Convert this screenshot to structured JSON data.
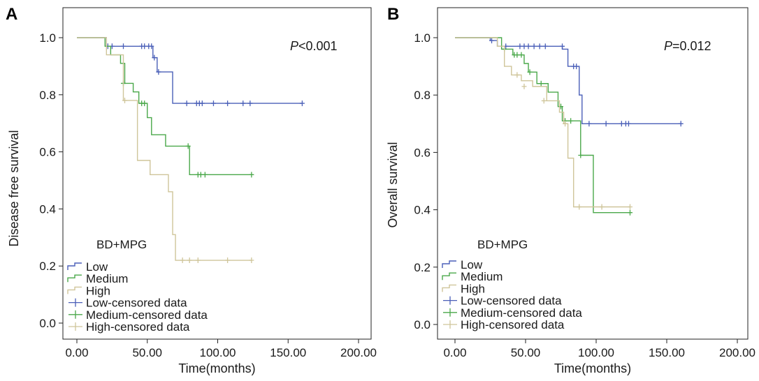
{
  "chart_data": [
    {
      "type": "line",
      "subtype": "kaplan-meier",
      "panel": "A",
      "ylabel": "Disease free survival",
      "xlabel": "Time(months)",
      "xlim": [
        0,
        200
      ],
      "ylim": [
        0,
        1.0
      ],
      "xticks": [
        "0.00",
        "50.00",
        "100.00",
        "150.00",
        "200.00"
      ],
      "yticks": [
        "0.0",
        "0.2",
        "0.4",
        "0.6",
        "0.8",
        "1.0"
      ],
      "pvalue": {
        "p": "P",
        "rest": "<0.001"
      },
      "legend_title": "BD+MPG",
      "legend": [
        "Low",
        "Medium",
        "High",
        "Low-censored data",
        "Medium-censored data",
        "High-censored data"
      ],
      "series": [
        {
          "name": "Low",
          "color": "#4a5fb8",
          "steps": [
            [
              0,
              1.0
            ],
            [
              21,
              0.97
            ],
            [
              54,
              0.93
            ],
            [
              57,
              0.88
            ],
            [
              68,
              0.77
            ],
            [
              160,
              0.77
            ]
          ],
          "censored": [
            [
              22,
              0.97
            ],
            [
              25,
              0.97
            ],
            [
              33,
              0.97
            ],
            [
              46,
              0.97
            ],
            [
              48,
              0.97
            ],
            [
              51,
              0.97
            ],
            [
              53,
              0.97
            ],
            [
              55,
              0.93
            ],
            [
              58,
              0.88
            ],
            [
              78,
              0.77
            ],
            [
              85,
              0.77
            ],
            [
              87,
              0.77
            ],
            [
              89,
              0.77
            ],
            [
              97,
              0.77
            ],
            [
              107,
              0.77
            ],
            [
              118,
              0.77
            ],
            [
              123,
              0.77
            ],
            [
              160,
              0.77
            ]
          ]
        },
        {
          "name": "Medium",
          "color": "#4aa84a",
          "steps": [
            [
              0,
              1.0
            ],
            [
              20,
              0.97
            ],
            [
              24,
              0.94
            ],
            [
              31,
              0.91
            ],
            [
              34,
              0.84
            ],
            [
              40,
              0.81
            ],
            [
              44,
              0.77
            ],
            [
              50,
              0.72
            ],
            [
              53,
              0.66
            ],
            [
              63,
              0.62
            ],
            [
              80,
              0.52
            ],
            [
              124,
              0.52
            ]
          ],
          "censored": [
            [
              33,
              0.84
            ],
            [
              46,
              0.77
            ],
            [
              48,
              0.77
            ],
            [
              79,
              0.62
            ],
            [
              86,
              0.52
            ],
            [
              88,
              0.52
            ],
            [
              91,
              0.52
            ],
            [
              124,
              0.52
            ]
          ]
        },
        {
          "name": "High",
          "color": "#cfc59a",
          "steps": [
            [
              0,
              1.0
            ],
            [
              21,
              0.94
            ],
            [
              33,
              0.78
            ],
            [
              43,
              0.57
            ],
            [
              52,
              0.52
            ],
            [
              65,
              0.46
            ],
            [
              68,
              0.31
            ],
            [
              70,
              0.22
            ],
            [
              124,
              0.22
            ]
          ],
          "censored": [
            [
              34,
              0.78
            ],
            [
              75,
              0.22
            ],
            [
              80,
              0.22
            ],
            [
              86,
              0.22
            ],
            [
              107,
              0.22
            ],
            [
              124,
              0.22
            ]
          ]
        }
      ]
    },
    {
      "type": "line",
      "subtype": "kaplan-meier",
      "panel": "B",
      "ylabel": "Overall survival",
      "xlabel": "Time(months)",
      "xlim": [
        0,
        200
      ],
      "ylim": [
        0,
        1.0
      ],
      "xticks": [
        "0.00",
        "50.00",
        "100.00",
        "150.00",
        "200.00"
      ],
      "yticks": [
        "0.0",
        "0.2",
        "0.4",
        "0.6",
        "0.8",
        "1.0"
      ],
      "pvalue": {
        "p": "P",
        "rest": "=0.012"
      },
      "legend_title": "BD+MPG",
      "legend": [
        "Low",
        "Medium",
        "High",
        "Low-censored data",
        "Medium-censored data",
        "High-censored data"
      ],
      "series": [
        {
          "name": "Low",
          "color": "#4a5fb8",
          "steps": [
            [
              0,
              1.0
            ],
            [
              25,
              0.99
            ],
            [
              30,
              0.97
            ],
            [
              76,
              0.96
            ],
            [
              80,
              0.9
            ],
            [
              88,
              0.8
            ],
            [
              90,
              0.7
            ],
            [
              160,
              0.7
            ]
          ],
          "censored": [
            [
              26,
              0.99
            ],
            [
              36,
              0.97
            ],
            [
              46,
              0.97
            ],
            [
              49,
              0.97
            ],
            [
              52,
              0.97
            ],
            [
              56,
              0.97
            ],
            [
              60,
              0.97
            ],
            [
              64,
              0.97
            ],
            [
              76,
              0.97
            ],
            [
              84,
              0.9
            ],
            [
              86,
              0.9
            ],
            [
              95,
              0.7
            ],
            [
              107,
              0.7
            ],
            [
              118,
              0.7
            ],
            [
              121,
              0.7
            ],
            [
              123,
              0.7
            ],
            [
              160,
              0.7
            ]
          ]
        },
        {
          "name": "Medium",
          "color": "#4aa84a",
          "steps": [
            [
              0,
              1.0
            ],
            [
              33,
              0.96
            ],
            [
              41,
              0.94
            ],
            [
              49,
              0.91
            ],
            [
              52,
              0.88
            ],
            [
              58,
              0.84
            ],
            [
              66,
              0.81
            ],
            [
              73,
              0.76
            ],
            [
              76,
              0.71
            ],
            [
              89,
              0.59
            ],
            [
              98,
              0.39
            ],
            [
              124,
              0.39
            ]
          ],
          "censored": [
            [
              35,
              0.96
            ],
            [
              42,
              0.94
            ],
            [
              44,
              0.94
            ],
            [
              47,
              0.94
            ],
            [
              53,
              0.88
            ],
            [
              61,
              0.84
            ],
            [
              75,
              0.76
            ],
            [
              78,
              0.71
            ],
            [
              82,
              0.71
            ],
            [
              89,
              0.59
            ],
            [
              124,
              0.39
            ]
          ]
        },
        {
          "name": "High",
          "color": "#cfc59a",
          "steps": [
            [
              0,
              1.0
            ],
            [
              30,
              0.97
            ],
            [
              35,
              0.9
            ],
            [
              40,
              0.87
            ],
            [
              47,
              0.85
            ],
            [
              55,
              0.83
            ],
            [
              65,
              0.78
            ],
            [
              74,
              0.74
            ],
            [
              77,
              0.7
            ],
            [
              80,
              0.58
            ],
            [
              84,
              0.41
            ],
            [
              124,
              0.41
            ]
          ],
          "censored": [
            [
              44,
              0.87
            ],
            [
              49,
              0.83
            ],
            [
              63,
              0.78
            ],
            [
              78,
              0.7
            ],
            [
              88,
              0.41
            ],
            [
              104,
              0.41
            ],
            [
              124,
              0.41
            ]
          ]
        }
      ]
    }
  ]
}
